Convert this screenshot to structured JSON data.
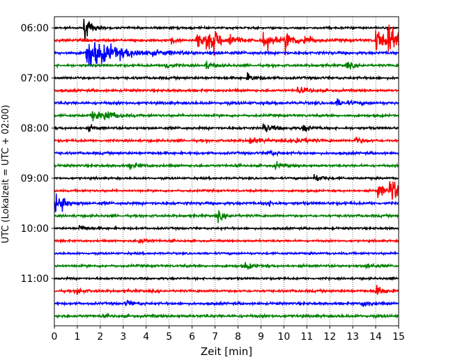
{
  "chart_data": {
    "type": "line",
    "subtype": "seismogram-helicorder",
    "xlabel": "Zeit  [min]",
    "ylabel": "UTC (Lokalzeit = UTC + 02:00)",
    "xlim": [
      0,
      15
    ],
    "x_ticks": [
      0,
      1,
      2,
      3,
      4,
      5,
      6,
      7,
      8,
      9,
      10,
      11,
      12,
      13,
      14,
      15
    ],
    "x_tick_labels": [
      "0",
      "1",
      "2",
      "3",
      "4",
      "5",
      "6",
      "7",
      "8",
      "9",
      "10",
      "11",
      "12",
      "13",
      "14",
      "15"
    ],
    "y_tick_labels": [
      "06:00",
      "07:00",
      "08:00",
      "09:00",
      "10:00",
      "11:00"
    ],
    "trace_interval_minutes": 15,
    "start_time": "06:00",
    "grid": "vertical-dotted",
    "color_cycle": [
      "#000000",
      "#ff0000",
      "#0000ff",
      "#008000"
    ],
    "traces": [
      {
        "start": "06:00",
        "color": "#000000",
        "noise": 0.6,
        "events": [
          {
            "t": 1.3,
            "amp": 3.2,
            "dur": 0.25
          }
        ]
      },
      {
        "start": "06:15",
        "color": "#ff0000",
        "noise": 0.8,
        "events": [
          {
            "t": 5.1,
            "amp": 1.2,
            "dur": 0.1
          },
          {
            "t": 6.2,
            "amp": 2.0,
            "dur": 0.4
          },
          {
            "t": 6.6,
            "amp": 2.6,
            "dur": 0.3
          },
          {
            "t": 6.9,
            "amp": 1.8,
            "dur": 0.3
          },
          {
            "t": 7.6,
            "amp": 1.6,
            "dur": 0.3
          },
          {
            "t": 9.1,
            "amp": 3.0,
            "dur": 0.3
          },
          {
            "t": 10.05,
            "amp": 2.8,
            "dur": 0.35
          },
          {
            "t": 10.9,
            "amp": 1.6,
            "dur": 0.25
          },
          {
            "t": 14.0,
            "amp": 3.4,
            "dur": 0.35
          },
          {
            "t": 14.55,
            "amp": 3.8,
            "dur": 0.35
          }
        ]
      },
      {
        "start": "06:30",
        "color": "#0000ff",
        "noise": 0.8,
        "events": [
          {
            "t": 1.4,
            "amp": 3.6,
            "dur": 1.3
          }
        ]
      },
      {
        "start": "06:45",
        "color": "#008000",
        "noise": 0.7,
        "events": [
          {
            "t": 4.8,
            "amp": 1.0,
            "dur": 0.3
          },
          {
            "t": 6.6,
            "amp": 1.0,
            "dur": 0.3
          },
          {
            "t": 12.7,
            "amp": 0.9,
            "dur": 0.3
          }
        ]
      },
      {
        "start": "07:00",
        "color": "#000000",
        "noise": 0.7,
        "events": [
          {
            "t": 8.4,
            "amp": 0.8,
            "dur": 0.4
          }
        ]
      },
      {
        "start": "07:15",
        "color": "#ff0000",
        "noise": 0.7,
        "events": [
          {
            "t": 10.6,
            "amp": 0.8,
            "dur": 0.4
          }
        ]
      },
      {
        "start": "07:30",
        "color": "#0000ff",
        "noise": 0.8,
        "events": [
          {
            "t": 12.3,
            "amp": 0.8,
            "dur": 0.4
          }
        ]
      },
      {
        "start": "07:45",
        "color": "#008000",
        "noise": 0.7,
        "events": [
          {
            "t": 1.6,
            "amp": 1.1,
            "dur": 0.5
          },
          {
            "t": 2.2,
            "amp": 1.1,
            "dur": 0.4
          }
        ]
      },
      {
        "start": "08:00",
        "color": "#000000",
        "noise": 0.7,
        "events": [
          {
            "t": 1.5,
            "amp": 0.8,
            "dur": 0.2
          },
          {
            "t": 9.1,
            "amp": 1.1,
            "dur": 0.4
          },
          {
            "t": 10.8,
            "amp": 0.9,
            "dur": 0.3
          }
        ]
      },
      {
        "start": "08:15",
        "color": "#ff0000",
        "noise": 0.7,
        "events": [
          {
            "t": 8.5,
            "amp": 0.9,
            "dur": 0.4
          },
          {
            "t": 10.5,
            "amp": 1.0,
            "dur": 0.4
          },
          {
            "t": 13.1,
            "amp": 0.8,
            "dur": 0.3
          }
        ]
      },
      {
        "start": "08:30",
        "color": "#0000ff",
        "noise": 0.7,
        "events": [
          {
            "t": 9.3,
            "amp": 0.7,
            "dur": 0.3
          }
        ]
      },
      {
        "start": "08:45",
        "color": "#008000",
        "noise": 0.7,
        "events": [
          {
            "t": 3.3,
            "amp": 0.8,
            "dur": 0.3
          },
          {
            "t": 9.6,
            "amp": 0.8,
            "dur": 0.3
          }
        ]
      },
      {
        "start": "09:00",
        "color": "#000000",
        "noise": 0.6,
        "events": [
          {
            "t": 11.3,
            "amp": 1.1,
            "dur": 0.3
          }
        ]
      },
      {
        "start": "09:15",
        "color": "#ff0000",
        "noise": 0.6,
        "events": [
          {
            "t": 14.1,
            "amp": 2.0,
            "dur": 0.25
          },
          {
            "t": 14.6,
            "amp": 3.4,
            "dur": 0.4
          }
        ]
      },
      {
        "start": "09:30",
        "color": "#0000ff",
        "noise": 0.8,
        "events": [
          {
            "t": 0.05,
            "amp": 2.2,
            "dur": 0.25
          },
          {
            "t": 0.35,
            "amp": 1.6,
            "dur": 0.2
          },
          {
            "t": 9.2,
            "amp": 0.8,
            "dur": 0.3
          }
        ]
      },
      {
        "start": "09:45",
        "color": "#008000",
        "noise": 0.7,
        "events": [
          {
            "t": 7.1,
            "amp": 1.2,
            "dur": 0.3
          }
        ]
      },
      {
        "start": "10:00",
        "color": "#000000",
        "noise": 0.6,
        "events": [
          {
            "t": 1.1,
            "amp": 0.9,
            "dur": 0.3
          }
        ]
      },
      {
        "start": "10:15",
        "color": "#ff0000",
        "noise": 0.6,
        "events": [
          {
            "t": 3.7,
            "amp": 0.8,
            "dur": 0.3
          }
        ]
      },
      {
        "start": "10:30",
        "color": "#0000ff",
        "noise": 0.6,
        "events": []
      },
      {
        "start": "10:45",
        "color": "#008000",
        "noise": 0.7,
        "events": [
          {
            "t": 8.3,
            "amp": 0.9,
            "dur": 0.3
          },
          {
            "t": 13.6,
            "amp": 0.8,
            "dur": 0.3
          }
        ]
      },
      {
        "start": "11:00",
        "color": "#000000",
        "noise": 0.6,
        "events": []
      },
      {
        "start": "11:15",
        "color": "#ff0000",
        "noise": 0.7,
        "events": [
          {
            "t": 1.0,
            "amp": 0.9,
            "dur": 0.2
          },
          {
            "t": 14.0,
            "amp": 1.3,
            "dur": 0.3
          }
        ]
      },
      {
        "start": "11:30",
        "color": "#0000ff",
        "noise": 0.7,
        "events": [
          {
            "t": 3.1,
            "amp": 0.8,
            "dur": 0.3
          },
          {
            "t": 13.4,
            "amp": 0.9,
            "dur": 0.3
          }
        ]
      },
      {
        "start": "11:45",
        "color": "#008000",
        "noise": 0.8,
        "events": []
      }
    ]
  }
}
